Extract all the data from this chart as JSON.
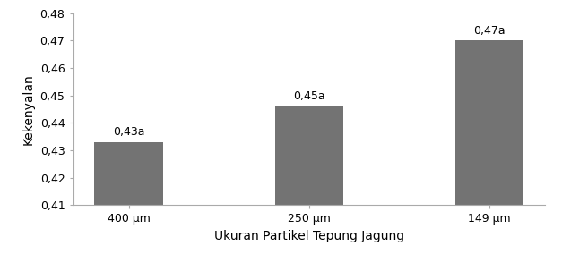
{
  "categories": [
    "400 μm",
    "250 μm",
    "149 μm"
  ],
  "values": [
    0.433,
    0.446,
    0.47
  ],
  "bar_labels": [
    "0,43a",
    "0,45a",
    "0,47a"
  ],
  "bar_color": "#737373",
  "xlabel": "Ukuran Partikel Tepung Jagung",
  "ylabel": "Kekenyalan",
  "ylim": [
    0.41,
    0.48
  ],
  "yticks": [
    0.41,
    0.42,
    0.43,
    0.44,
    0.45,
    0.46,
    0.47,
    0.48
  ],
  "bar_width": 0.38,
  "label_fontsize": 9,
  "tick_fontsize": 9,
  "axis_label_fontsize": 10,
  "figsize": [
    6.27,
    2.94
  ],
  "dpi": 100
}
